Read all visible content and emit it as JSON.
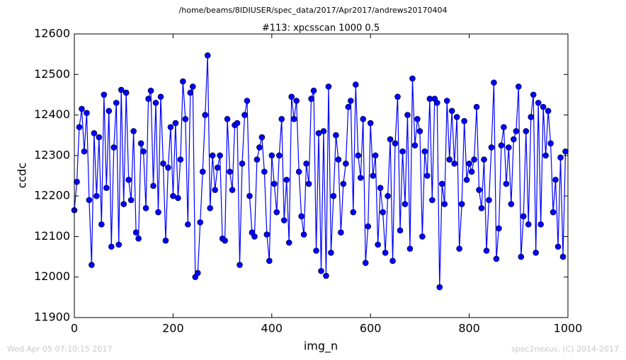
{
  "chart_data": {
    "type": "line",
    "suptitle": "/home/beams/8IDIUSER/spec_data/2017/Apr2017/andrews20170404",
    "title": "#113: xpcsscan 1000 0.5",
    "xlabel": "img_n",
    "ylabel": "ccdc",
    "footer_left": "Wed Apr 05 07:10:15 2017",
    "footer_right": "spec2nexus, (C) 2014-2017",
    "xlim": [
      0,
      1000
    ],
    "ylim": [
      11900,
      12600
    ],
    "xticks": [
      0,
      200,
      400,
      600,
      800,
      1000
    ],
    "yticks": [
      11900,
      12000,
      12100,
      12200,
      12300,
      12400,
      12500,
      12600
    ],
    "grid": false,
    "x": [
      0,
      5,
      10,
      15,
      20,
      25,
      30,
      35,
      40,
      45,
      50,
      55,
      60,
      65,
      70,
      75,
      80,
      85,
      90,
      95,
      100,
      105,
      110,
      115,
      120,
      125,
      130,
      135,
      140,
      145,
      150,
      155,
      160,
      165,
      170,
      175,
      180,
      185,
      190,
      195,
      200,
      205,
      210,
      215,
      220,
      225,
      230,
      235,
      240,
      245,
      250,
      255,
      260,
      265,
      270,
      275,
      280,
      285,
      290,
      295,
      300,
      305,
      310,
      315,
      320,
      325,
      330,
      335,
      340,
      345,
      350,
      355,
      360,
      365,
      370,
      375,
      380,
      385,
      390,
      395,
      400,
      405,
      410,
      415,
      420,
      425,
      430,
      435,
      440,
      445,
      450,
      455,
      460,
      465,
      470,
      475,
      480,
      485,
      490,
      495,
      500,
      505,
      510,
      515,
      520,
      525,
      530,
      535,
      540,
      545,
      550,
      555,
      560,
      565,
      570,
      575,
      580,
      585,
      590,
      595,
      600,
      605,
      610,
      615,
      620,
      625,
      630,
      635,
      640,
      645,
      650,
      655,
      660,
      665,
      670,
      675,
      680,
      685,
      690,
      695,
      700,
      705,
      710,
      715,
      720,
      725,
      730,
      735,
      740,
      745,
      750,
      755,
      760,
      765,
      770,
      775,
      780,
      785,
      790,
      795,
      800,
      805,
      810,
      815,
      820,
      825,
      830,
      835,
      840,
      845,
      850,
      855,
      860,
      865,
      870,
      875,
      880,
      885,
      890,
      895,
      900,
      905,
      910,
      915,
      920,
      925,
      930,
      935,
      940,
      945,
      950,
      955,
      960,
      965,
      970,
      975,
      980,
      985,
      990,
      995
    ],
    "series": [
      {
        "name": "ccdc",
        "color": "#0000ff",
        "values": [
          12165,
          12235,
          12370,
          12415,
          12310,
          12405,
          12190,
          12030,
          12355,
          12200,
          12345,
          12130,
          12450,
          12220,
          12410,
          12075,
          12320,
          12430,
          12080,
          12462,
          12180,
          12455,
          12240,
          12190,
          12360,
          12110,
          12095,
          12330,
          12310,
          12170,
          12440,
          12460,
          12225,
          12430,
          12160,
          12445,
          12280,
          12090,
          12270,
          12370,
          12200,
          12380,
          12195,
          12290,
          12483,
          12390,
          12130,
          12455,
          12470,
          12000,
          12010,
          12135,
          12260,
          12400,
          12547,
          12170,
          12300,
          12215,
          12270,
          12300,
          12095,
          12090,
          12390,
          12260,
          12215,
          12375,
          12380,
          12030,
          12280,
          12400,
          12435,
          12200,
          12110,
          12100,
          12290,
          12320,
          12345,
          12260,
          12105,
          12040,
          12300,
          12230,
          12160,
          12300,
          12390,
          12140,
          12240,
          12085,
          12445,
          12390,
          12435,
          12260,
          12150,
          12105,
          12280,
          12230,
          12440,
          12460,
          12065,
          12355,
          12015,
          12360,
          12003,
          12470,
          12060,
          12200,
          12350,
          12290,
          12110,
          12230,
          12280,
          12420,
          12435,
          12160,
          12475,
          12300,
          12245,
          12390,
          12035,
          12125,
          12380,
          12250,
          12300,
          12080,
          12220,
          12160,
          12060,
          12200,
          12340,
          12040,
          12330,
          12445,
          12115,
          12310,
          12180,
          12400,
          12070,
          12490,
          12325,
          12390,
          12360,
          12100,
          12310,
          12250,
          12440,
          12190,
          12440,
          12430,
          11975,
          12230,
          12180,
          12435,
          12290,
          12410,
          12280,
          12395,
          12070,
          12180,
          12385,
          12240,
          12280,
          12260,
          12290,
          12420,
          12215,
          12170,
          12290,
          12065,
          12190,
          12320,
          12480,
          12045,
          12120,
          12325,
          12370,
          12230,
          12320,
          12180,
          12340,
          12360,
          12470,
          12050,
          12150,
          12360,
          12130,
          12395,
          12450,
          12060,
          12430,
          12130,
          12420,
          12300,
          12410,
          12330,
          12160,
          12240,
          12075,
          12295,
          12050,
          12310
        ]
      }
    ]
  }
}
